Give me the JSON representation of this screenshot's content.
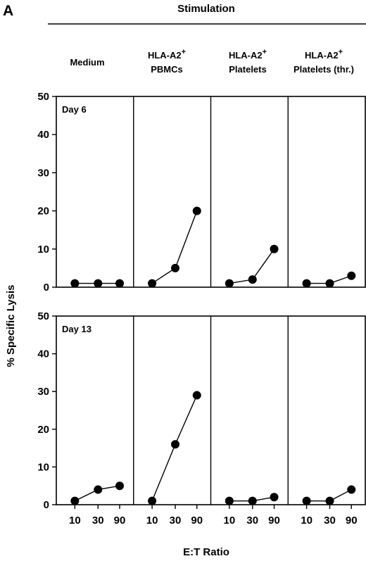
{
  "panel_letter": "A",
  "header": {
    "title": "Stimulation"
  },
  "columns": [
    {
      "line1": "Medium",
      "line2": ""
    },
    {
      "line1": "HLA-A2",
      "sup": "+",
      "line2": "PBMCs"
    },
    {
      "line1": "HLA-A2",
      "sup": "+",
      "line2": "Platelets"
    },
    {
      "line1": "HLA-A2",
      "sup": "+",
      "line2": "Platelets (thr.)"
    }
  ],
  "ylabel": "% Specific Lysis",
  "xlabel": "E:T Ratio",
  "yticks": [
    "0",
    "10",
    "20",
    "30",
    "40",
    "50"
  ],
  "xticks": [
    "10",
    "30",
    "90"
  ],
  "colors": {
    "ink": "#000000",
    "background": "#ffffff"
  },
  "chart_data": {
    "type": "line",
    "ylim": [
      0,
      50
    ],
    "x_categories": [
      "10",
      "30",
      "90"
    ],
    "panels": [
      {
        "row_label": "Day 6",
        "series": [
          {
            "column": "Medium",
            "values": [
              1,
              1,
              1
            ]
          },
          {
            "column": "HLA-A2+ PBMCs",
            "values": [
              1,
              5,
              20
            ]
          },
          {
            "column": "HLA-A2+ Platelets",
            "values": [
              1,
              2,
              10
            ]
          },
          {
            "column": "HLA-A2+ Platelets (thr.)",
            "values": [
              1,
              1,
              3
            ]
          }
        ]
      },
      {
        "row_label": "Day 13",
        "series": [
          {
            "column": "Medium",
            "values": [
              1,
              4,
              5
            ]
          },
          {
            "column": "HLA-A2+ PBMCs",
            "values": [
              1,
              16,
              29
            ]
          },
          {
            "column": "HLA-A2+ Platelets",
            "values": [
              1,
              1,
              2
            ]
          },
          {
            "column": "HLA-A2+ Platelets (thr.)",
            "values": [
              1,
              1,
              4
            ]
          }
        ]
      }
    ]
  }
}
